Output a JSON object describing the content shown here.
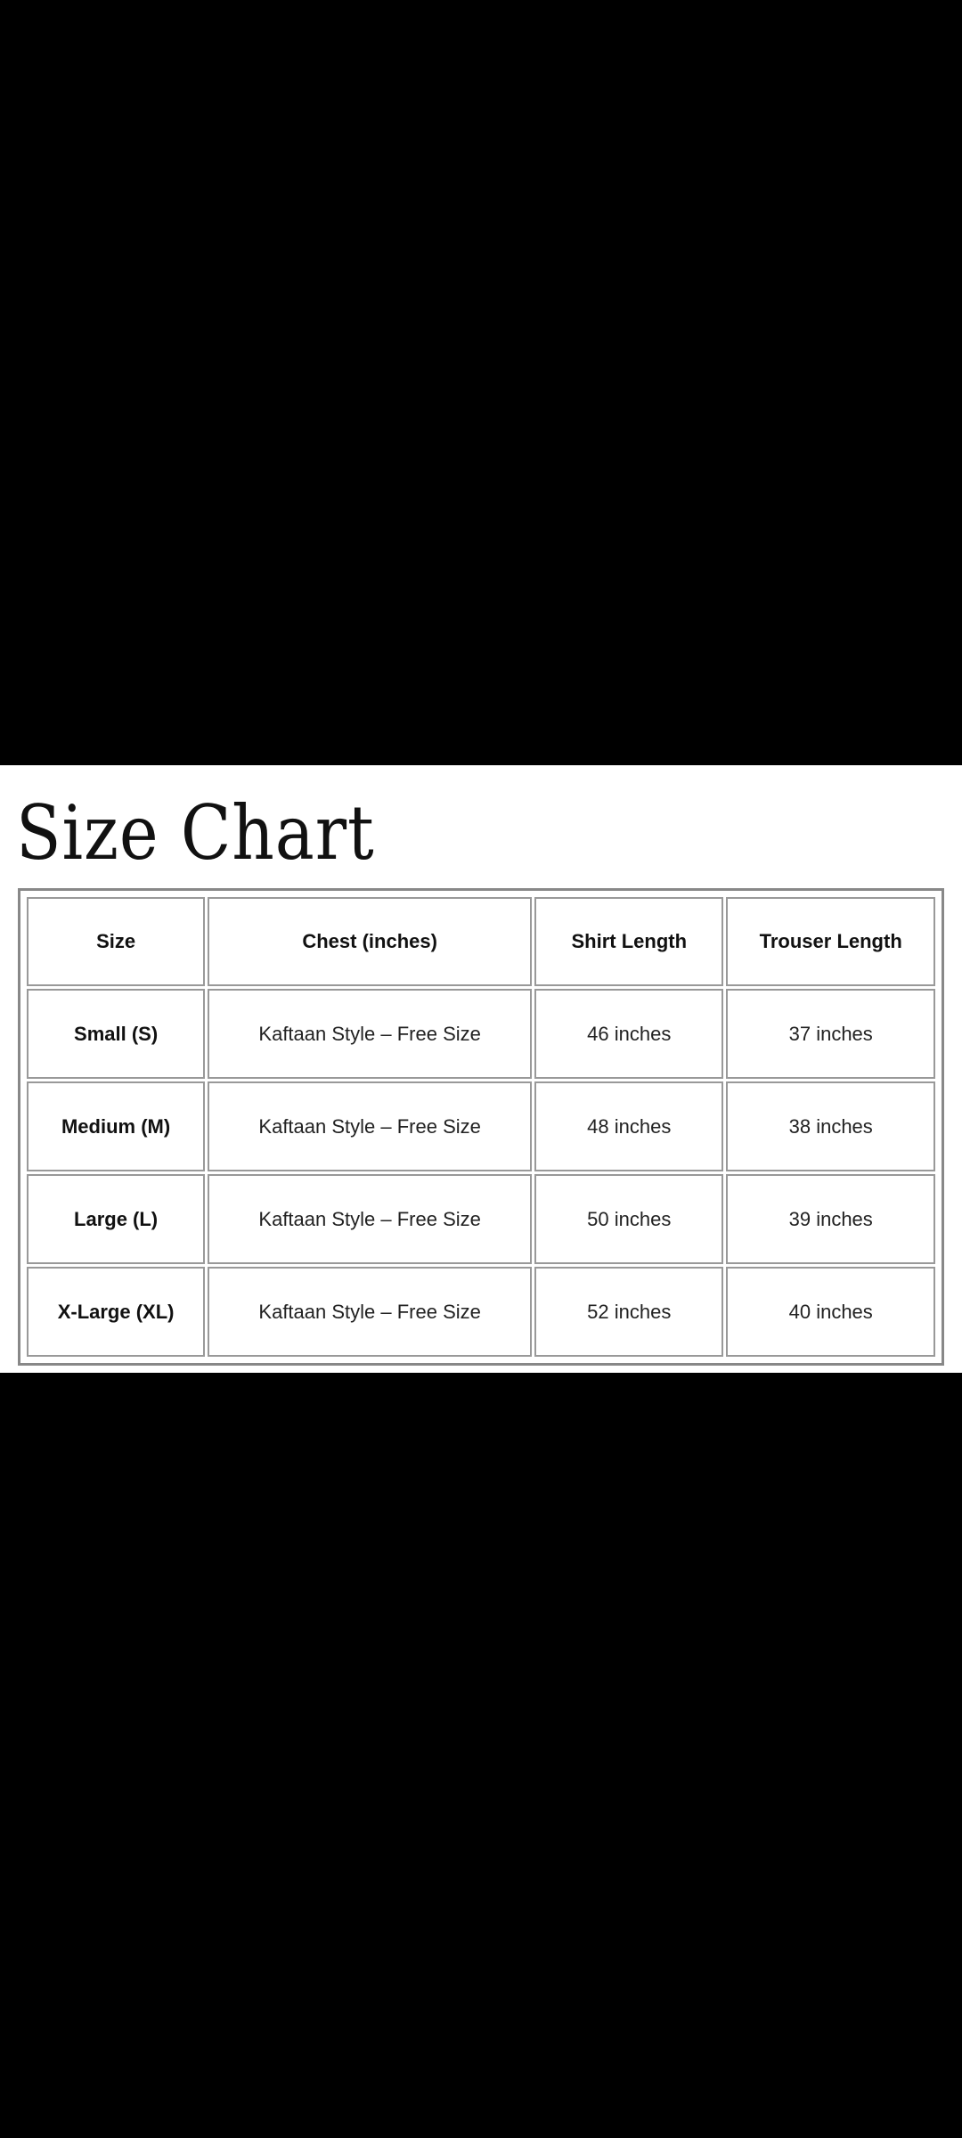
{
  "title": "Size Chart",
  "table": {
    "headers": [
      "Size",
      "Chest (inches)",
      "Shirt Length",
      "Trouser Length"
    ],
    "rows": [
      [
        "Small (S)",
        "Kaftaan Style – Free Size",
        "46 inches",
        "37 inches"
      ],
      [
        "Medium (M)",
        "Kaftaan Style – Free Size",
        "48 inches",
        "38 inches"
      ],
      [
        "Large (L)",
        "Kaftaan Style – Free Size",
        "50 inches",
        "39 inches"
      ],
      [
        "X-Large (XL)",
        "Kaftaan Style – Free Size",
        "52 inches",
        "40 inches"
      ]
    ]
  }
}
